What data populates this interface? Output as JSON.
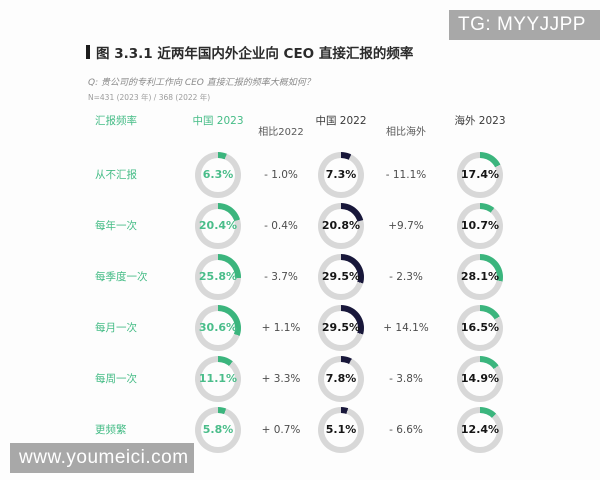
{
  "watermarks": {
    "top_right": "TG: MYYJJPP",
    "bottom_left": "www.youmeici.com"
  },
  "header": {
    "title": "图 3.3.1 近两年国内外企业向 CEO 直接汇报的频率",
    "question": "Q: 贵公司的专利工作向 CEO 直接汇报的频率大概如何？",
    "sample": "N=431 (2023 年) / 368 (2022 年)"
  },
  "colors": {
    "green": "#3bb57d",
    "navy": "#18173a",
    "track": "#d8d8d8",
    "watermark_gray": "#a8a8a8"
  },
  "chart_data": {
    "type": "table",
    "title": "图 3.3.1 近两年国内外企业向 CEO 直接汇报的频率",
    "subtitle": "Q: 贵公司的专利工作向 CEO 直接汇报的频率大概如何？",
    "sample_note": "N=431 (2023 年) / 368 (2022 年)",
    "row_header": "汇报频率",
    "unit": "%",
    "donut_style": "ring, arc starts at 12 o'clock clockwise",
    "categories": [
      "从不汇报",
      "每年一次",
      "每季度一次",
      "每月一次",
      "每周一次",
      "更频繁"
    ],
    "series": [
      {
        "name": "中国 2023",
        "kind": "donut",
        "color": "#3bb57d",
        "values": [
          6.3,
          20.4,
          25.8,
          30.6,
          11.1,
          5.8
        ],
        "labels": [
          "6.3%",
          "20.4%",
          "25.8%",
          "30.6%",
          "11.1%",
          "5.8%"
        ]
      },
      {
        "name": "相比2022",
        "kind": "delta",
        "values": [
          -1.0,
          -0.4,
          -3.7,
          1.1,
          3.3,
          0.7
        ],
        "labels": [
          "- 1.0%",
          "- 0.4%",
          "- 3.7%",
          "+ 1.1%",
          "+ 3.3%",
          "+ 0.7%"
        ]
      },
      {
        "name": "中国 2022",
        "kind": "donut",
        "color": "#18173a",
        "values": [
          7.3,
          20.8,
          29.5,
          29.5,
          7.8,
          5.1
        ],
        "labels": [
          "7.3%",
          "20.8%",
          "29.5%",
          "29.5%",
          "7.8%",
          "5.1%"
        ]
      },
      {
        "name": "相比海外",
        "kind": "delta",
        "values": [
          -11.1,
          9.7,
          -2.3,
          14.1,
          -3.8,
          -6.6
        ],
        "labels": [
          "- 11.1%",
          "+9.7%",
          "- 2.3%",
          "+ 14.1%",
          "- 3.8%",
          "- 6.6%"
        ]
      },
      {
        "name": "海外 2023",
        "kind": "donut",
        "color": "#3bb57d",
        "values": [
          17.4,
          10.7,
          28.1,
          16.5,
          14.9,
          12.4
        ],
        "labels": [
          "17.4%",
          "10.7%",
          "28.1%",
          "16.5%",
          "14.9%",
          "12.4%"
        ]
      }
    ]
  }
}
